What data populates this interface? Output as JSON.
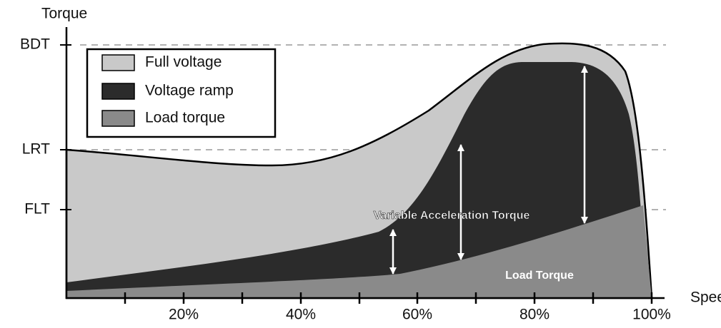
{
  "axis": {
    "y_title": "Torque",
    "x_title": "Speed",
    "y_levels": [
      "BDT",
      "LRT",
      "FLT"
    ],
    "x_ticks": [
      "20%",
      "40%",
      "60%",
      "80%",
      "100%"
    ]
  },
  "legend": [
    "Full voltage",
    "Voltage ramp",
    "Load torque"
  ],
  "annotations": {
    "acceleration": "Variable Acceleration Torque",
    "load": "Load Torque"
  }
}
